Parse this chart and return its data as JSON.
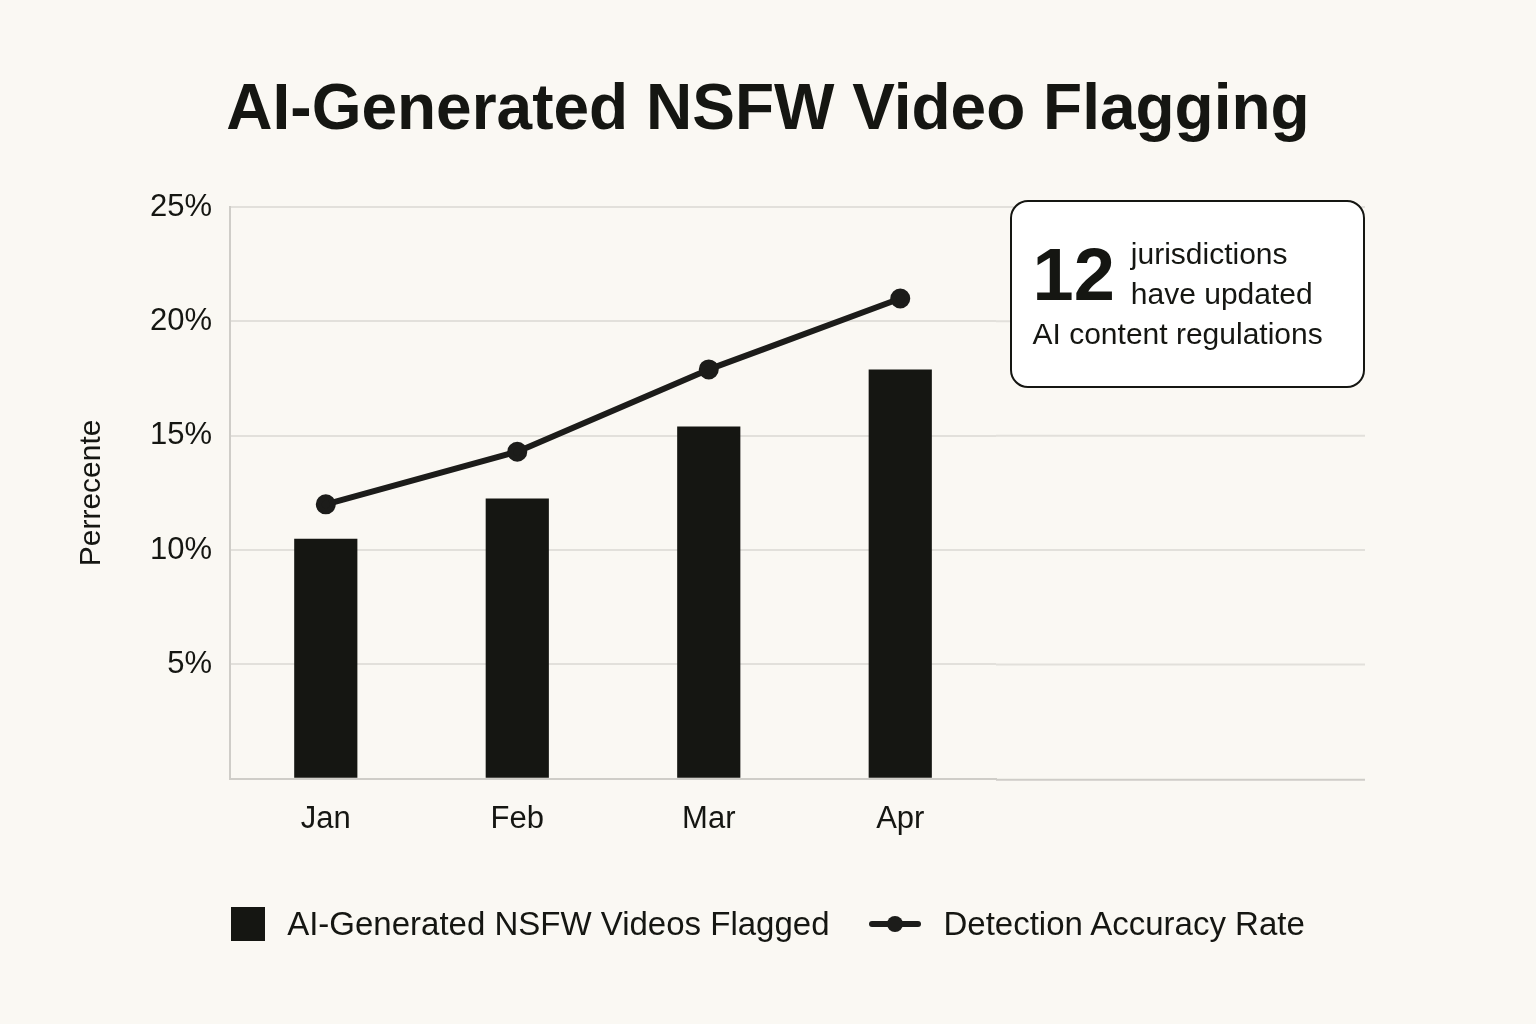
{
  "chart_data": {
    "type": "bar",
    "title": "AI-Generated NSFW Video Flagging",
    "ylabel": "Perrecente",
    "categories": [
      "Jan",
      "Feb",
      "Mar",
      "Apr"
    ],
    "series": [
      {
        "name": "AI-Generated NSFW Videos Flagged",
        "color": "#151612",
        "values": [
          10.5,
          12.25,
          15.4,
          17.9
        ]
      },
      {
        "name": "Detection Accuracy Rate",
        "type": "line",
        "color": "#1c1c1a",
        "values": [
          12.0,
          14.3,
          17.9,
          21.0
        ]
      }
    ],
    "ylim": [
      0,
      25
    ],
    "yticks": [
      {
        "value": 0,
        "label": null
      },
      {
        "value": 5,
        "label": "5%"
      },
      {
        "value": 10,
        "label": "10%"
      },
      {
        "value": 15,
        "label": "15%"
      },
      {
        "value": 20,
        "label": "20%"
      },
      {
        "value": 25,
        "label": "25%"
      }
    ],
    "grid": "y",
    "legend": "bottom",
    "marker": "circle",
    "annotations": [
      "12 jurisdictions have updated AI content regulations"
    ]
  }
}
